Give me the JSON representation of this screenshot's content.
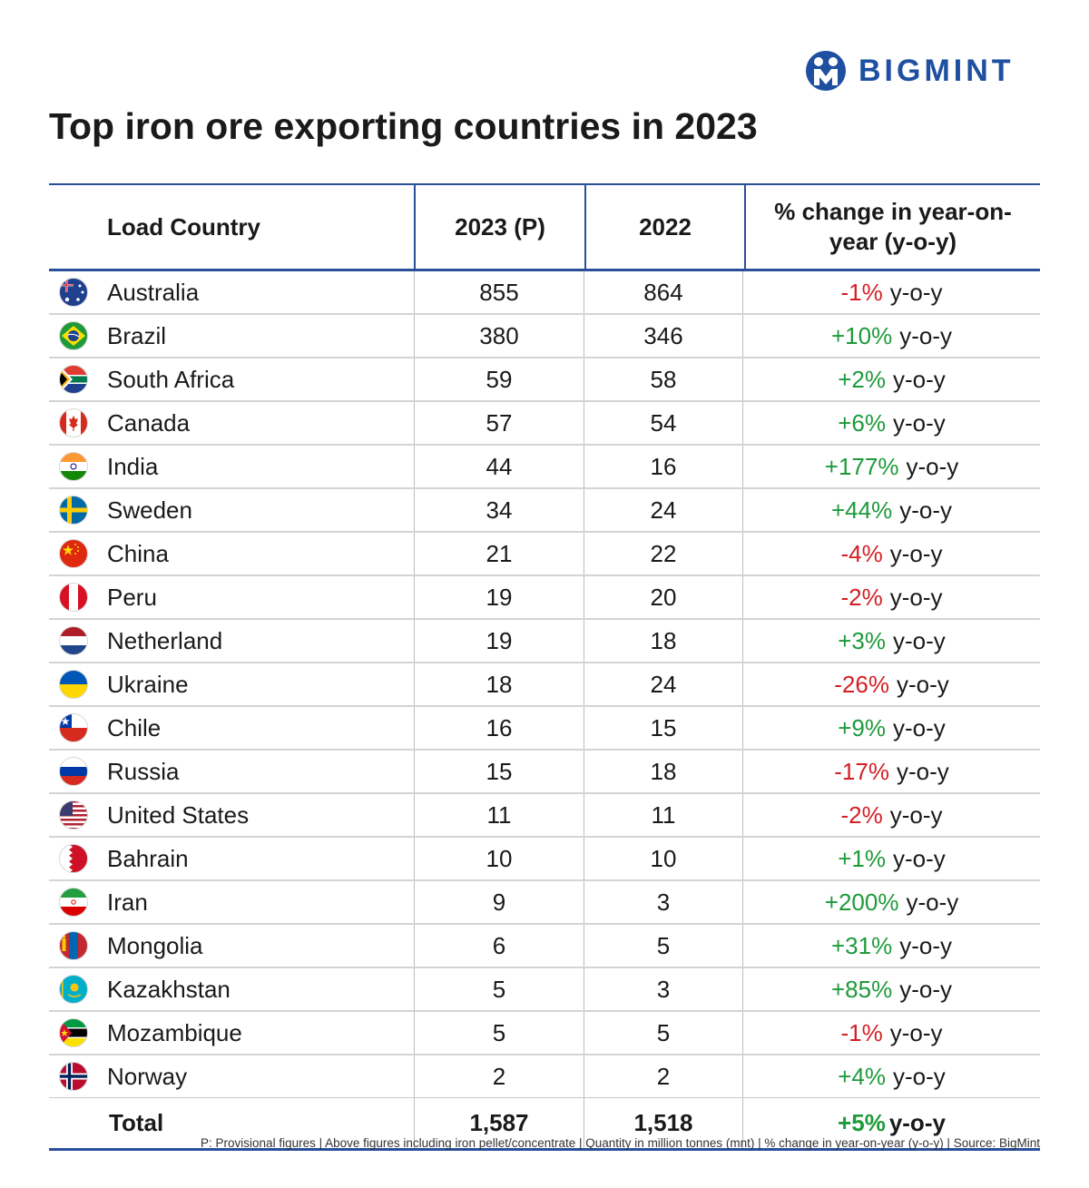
{
  "brand": {
    "name": "BIGMINT",
    "color": "#1e4fa0"
  },
  "title": "Top iron ore exporting countries in 2023",
  "chart_data": {
    "type": "table",
    "title": "Top iron ore exporting countries in 2023",
    "columns": [
      "Load Country",
      "2023 (P)",
      "2022",
      "% change in year-on-year (y-o-y)"
    ],
    "rows": [
      {
        "country": "Australia",
        "flag": "australia-flag",
        "v2023": "855",
        "v2022": "864",
        "change": "-1%",
        "dir": "neg"
      },
      {
        "country": "Brazil",
        "flag": "brazil-flag",
        "v2023": "380",
        "v2022": "346",
        "change": "+10%",
        "dir": "pos"
      },
      {
        "country": "South Africa",
        "flag": "south-africa-flag",
        "v2023": "59",
        "v2022": "58",
        "change": "+2%",
        "dir": "pos"
      },
      {
        "country": "Canada",
        "flag": "canada-flag",
        "v2023": "57",
        "v2022": "54",
        "change": "+6%",
        "dir": "pos"
      },
      {
        "country": "India",
        "flag": "india-flag",
        "v2023": "44",
        "v2022": "16",
        "change": "+177%",
        "dir": "pos"
      },
      {
        "country": "Sweden",
        "flag": "sweden-flag",
        "v2023": "34",
        "v2022": "24",
        "change": "+44%",
        "dir": "pos"
      },
      {
        "country": "China",
        "flag": "china-flag",
        "v2023": "21",
        "v2022": "22",
        "change": "-4%",
        "dir": "neg"
      },
      {
        "country": "Peru",
        "flag": "peru-flag",
        "v2023": "19",
        "v2022": "20",
        "change": "-2%",
        "dir": "neg"
      },
      {
        "country": "Netherland",
        "flag": "netherlands-flag",
        "v2023": "19",
        "v2022": "18",
        "change": "+3%",
        "dir": "pos"
      },
      {
        "country": "Ukraine",
        "flag": "ukraine-flag",
        "v2023": "18",
        "v2022": "24",
        "change": "-26%",
        "dir": "neg"
      },
      {
        "country": "Chile",
        "flag": "chile-flag",
        "v2023": "16",
        "v2022": "15",
        "change": "+9%",
        "dir": "pos"
      },
      {
        "country": "Russia",
        "flag": "russia-flag",
        "v2023": "15",
        "v2022": "18",
        "change": "-17%",
        "dir": "neg"
      },
      {
        "country": "United States",
        "flag": "united-states-flag",
        "v2023": "11",
        "v2022": "11",
        "change": "-2%",
        "dir": "neg"
      },
      {
        "country": "Bahrain",
        "flag": "bahrain-flag",
        "v2023": "10",
        "v2022": "10",
        "change": "+1%",
        "dir": "pos"
      },
      {
        "country": "Iran",
        "flag": "iran-flag",
        "v2023": "9",
        "v2022": "3",
        "change": "+200%",
        "dir": "pos"
      },
      {
        "country": "Mongolia",
        "flag": "mongolia-flag",
        "v2023": "6",
        "v2022": "5",
        "change": "+31%",
        "dir": "pos"
      },
      {
        "country": "Kazakhstan",
        "flag": "kazakhstan-flag",
        "v2023": "5",
        "v2022": "3",
        "change": "+85%",
        "dir": "pos"
      },
      {
        "country": "Mozambique",
        "flag": "mozambique-flag",
        "v2023": "5",
        "v2022": "5",
        "change": "-1%",
        "dir": "neg"
      },
      {
        "country": "Norway",
        "flag": "norway-flag",
        "v2023": "2",
        "v2022": "2",
        "change": "+4%",
        "dir": "pos"
      }
    ],
    "total": {
      "label": "Total",
      "v2023": "1,587",
      "v2022": "1,518",
      "change": "+5%",
      "dir": "pos"
    },
    "suffix": "y-o-y",
    "units": "million tonnes (mnt)"
  },
  "colors": {
    "positive": "#1e9a3a",
    "negative": "#d41f24",
    "rule": "#2a4f9a"
  },
  "footnote": "P: Provisional figures | Above figures including iron pellet/concentrate | Quantity in million tonnes (mnt) | % change in year-on-year (y-o-y) | Source: BigMint"
}
